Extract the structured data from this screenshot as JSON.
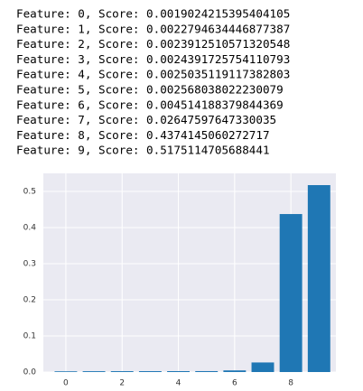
{
  "output_lines": [
    "Feature: 0, Score: 0.0019024215395404105",
    "Feature: 1, Score: 0.0022794634446877387",
    "Feature: 2, Score: 0.0023912510571320548",
    "Feature: 3, Score: 0.0024391725754110793",
    "Feature: 4, Score: 0.0025035119117382803",
    "Feature: 5, Score: 0.002568038022230079",
    "Feature: 6, Score: 0.004514188379844369",
    "Feature: 7, Score: 0.02647597647330035",
    "Feature: 8, Score: 0.4374145060272717",
    "Feature: 9, Score: 0.5175114705688441"
  ],
  "chart_data": {
    "type": "bar",
    "x": [
      0,
      1,
      2,
      3,
      4,
      5,
      6,
      7,
      8,
      9
    ],
    "values": [
      0.0019024215395404105,
      0.0022794634446877387,
      0.0023912510571320548,
      0.0024391725754110793,
      0.0025035119117382803,
      0.002568038022230079,
      0.004514188379844369,
      0.02647597647330035,
      0.4374145060272717,
      0.5175114705688441
    ],
    "color": "#1f77b4",
    "xlim": [
      -0.8,
      9.6
    ],
    "xticks": [
      0,
      2,
      4,
      6,
      8
    ],
    "ylim": [
      0,
      0.55
    ],
    "yticks": [
      {
        "value": 0,
        "label": "0.0"
      },
      0.1,
      0.2,
      0.3,
      0.4,
      0.5
    ],
    "grid": true
  }
}
